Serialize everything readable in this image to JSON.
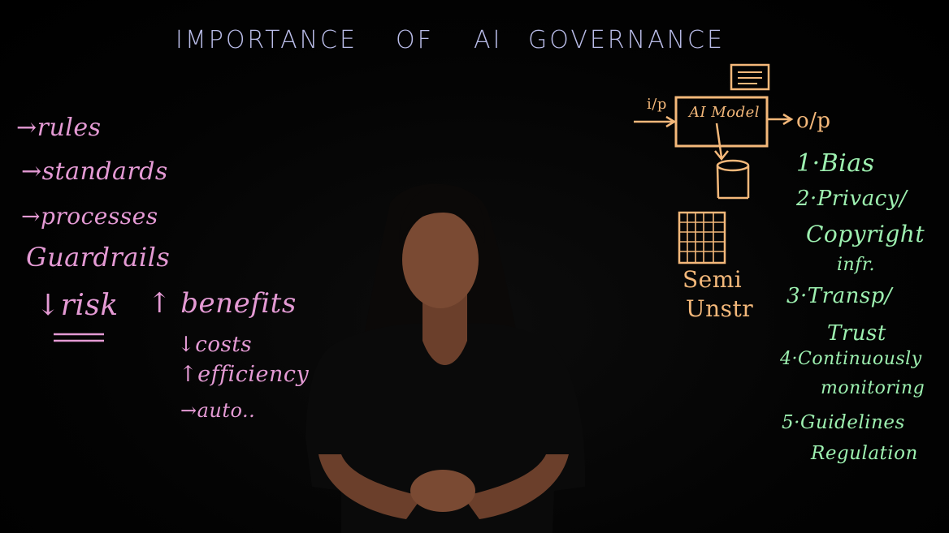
{
  "title_words": [
    "IMPORTANCE",
    "OF",
    "AI",
    "GOVERNANCE"
  ],
  "left": {
    "rules": "→rules",
    "standards": "→standards",
    "processes": "→processes",
    "guardrails": "Guardrails",
    "risk": "↓risk",
    "benefits": "↑ benefits",
    "costs": "↓costs",
    "efficiency": "↑efficiency",
    "auto": "→auto.."
  },
  "diagram": {
    "input": "i/p",
    "model": "AI Model",
    "output": "o/p",
    "semi": "Semi",
    "unstr": "Unstr"
  },
  "list": {
    "bias": "1·Bias",
    "privacy": "2·Privacy/",
    "copyright": "Copyright",
    "infr": "infr.",
    "transp": "3·Transp/",
    "trust": "Trust",
    "continuous": "4·Continuously",
    "monitoring": "monitoring",
    "guidelines": "5·Guidelines",
    "regulation": "Regulation"
  },
  "colors": {
    "title": "#b9bce8",
    "pink": "#e49ad4",
    "green": "#9df0b0",
    "orange": "#f4b87a",
    "background": "#030303"
  }
}
